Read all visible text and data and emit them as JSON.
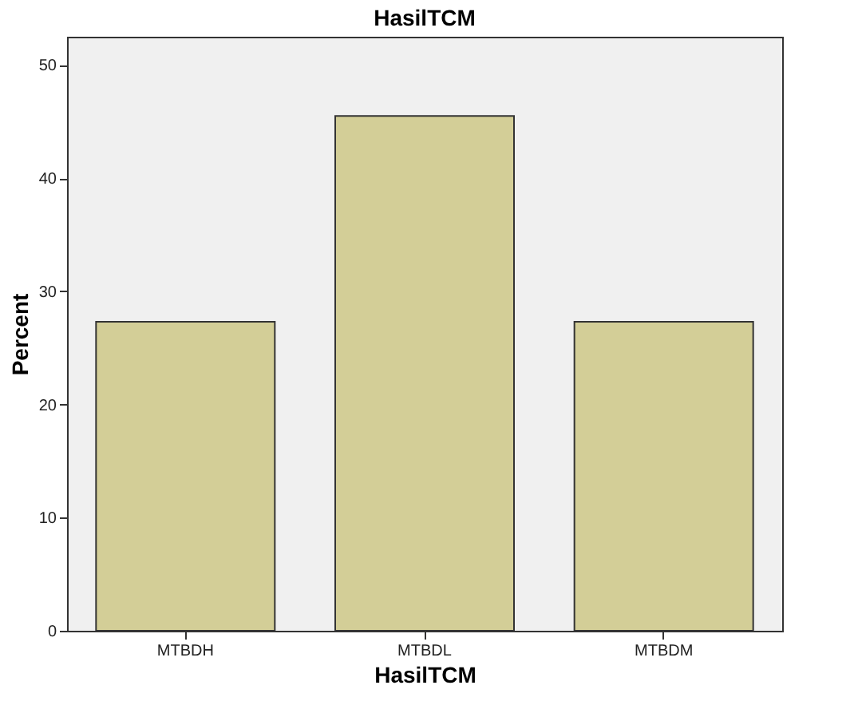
{
  "chart_data": {
    "type": "bar",
    "title": "HasilTCM",
    "xlabel": "HasilTCM",
    "ylabel": "Percent",
    "categories": [
      "MTBDH",
      "MTBDL",
      "MTBDM"
    ],
    "values": [
      27.3,
      45.5,
      27.3
    ],
    "color": "#d3ce97",
    "ylim": [
      0,
      52.5
    ],
    "yticks": [
      0,
      10,
      20,
      30,
      40,
      50
    ],
    "grid": false
  }
}
